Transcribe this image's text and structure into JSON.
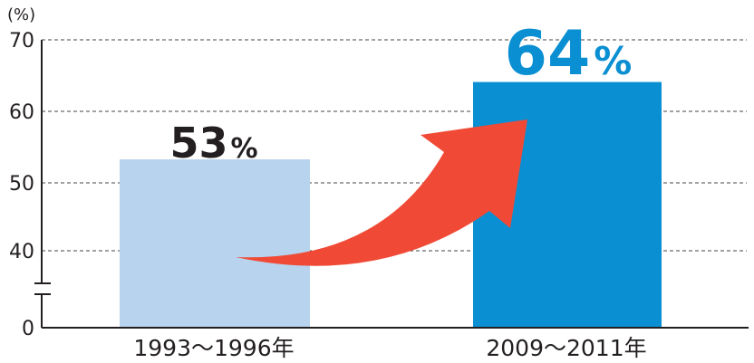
{
  "chart_data": {
    "type": "bar",
    "ylabel": "(%)",
    "categories": [
      "1993〜1996年",
      "2009〜2011年"
    ],
    "values": [
      53,
      64
    ],
    "data_labels": [
      {
        "number": "53",
        "unit": "%"
      },
      {
        "number": "64",
        "unit": "%"
      }
    ],
    "y_ticks": [
      "0",
      "40",
      "50",
      "60",
      "70"
    ],
    "ylim": [
      0,
      70
    ],
    "axis_break": true,
    "grid": true,
    "annotation": "arrow-increase",
    "colors": [
      "#b8d3ee",
      "#0a8fd3"
    ],
    "label_colors": [
      "#231f20",
      "#0a8fd3"
    ],
    "arrow_color": "#f04a36"
  }
}
